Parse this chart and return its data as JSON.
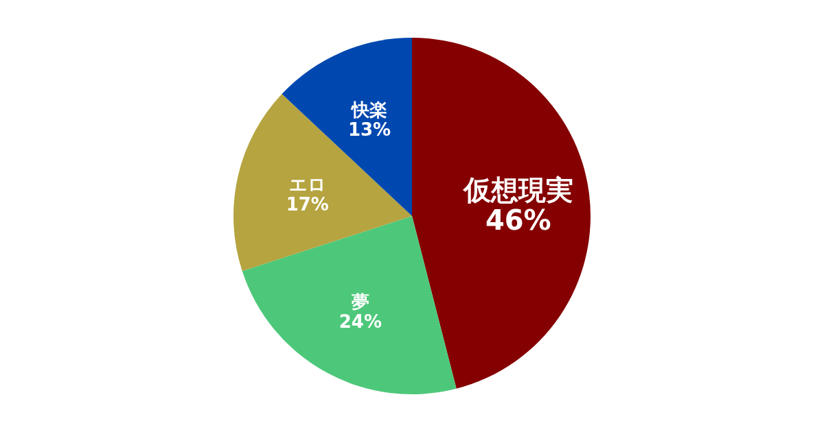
{
  "chart_data": {
    "type": "pie",
    "categories": [
      "仮想現実",
      "夢",
      "エロ",
      "快楽"
    ],
    "values": [
      46,
      24,
      17,
      13
    ],
    "colors": [
      "#850000",
      "#4dc87a",
      "#b5a440",
      "#0048b0"
    ],
    "value_labels": [
      "46%",
      "24%",
      "17%",
      "13%"
    ],
    "legend": false
  }
}
